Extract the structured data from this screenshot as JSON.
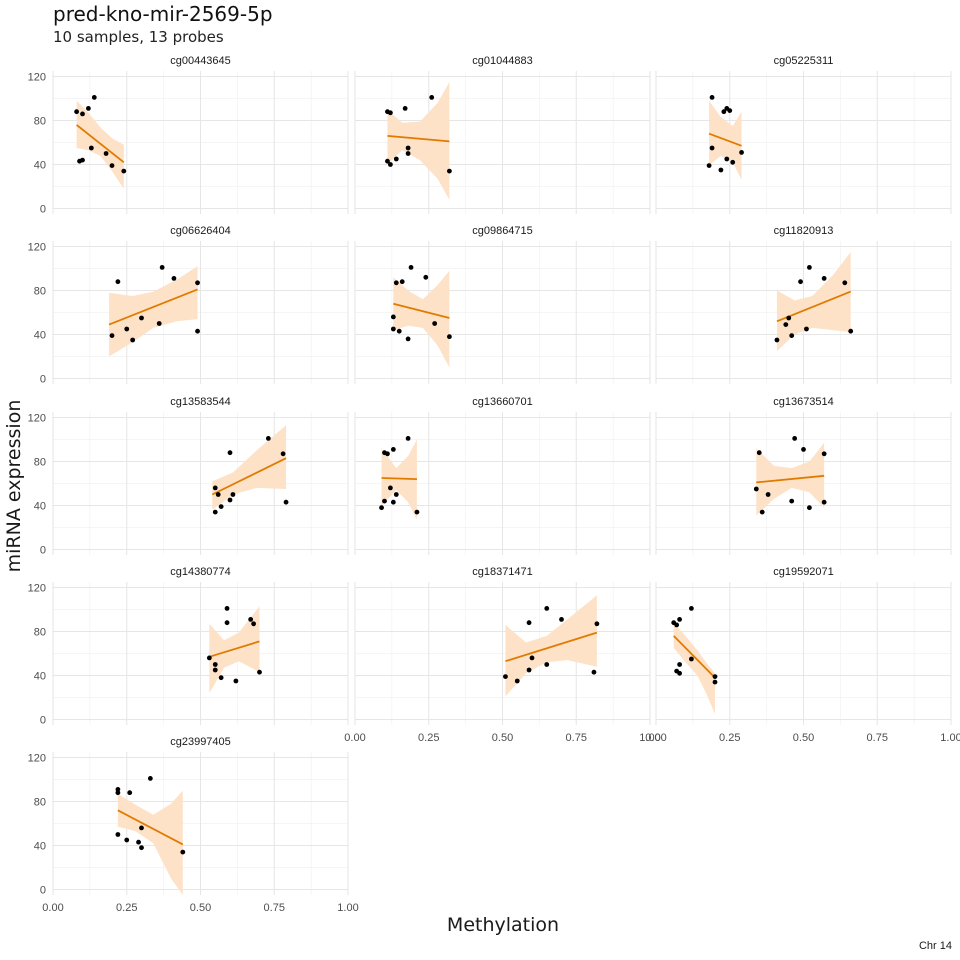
{
  "page": {
    "title": "pred-kno-mir-2569-5p",
    "subtitle": "10 samples, 13 probes",
    "caption": "Chr 14"
  },
  "colors": {
    "line": "#e07b00",
    "ribbon": "#fde0c5",
    "point": "#000000",
    "grid_major": "#e6e6e6",
    "grid_minor": "#f2f2f2"
  },
  "chart_data": {
    "type": "scatter",
    "xlabel": "Methylation",
    "ylabel": "miRNA expression",
    "xlim": [
      0,
      1
    ],
    "ylim": [
      -5,
      125
    ],
    "x_ticks": [
      0,
      0.25,
      0.5,
      0.75,
      1
    ],
    "x_tick_labels": [
      "0.00",
      "0.25",
      "0.50",
      "0.75",
      "1.00"
    ],
    "y_ticks": [
      0,
      40,
      80,
      120
    ],
    "y_tick_labels": [
      "0",
      "40",
      "80",
      "120"
    ],
    "grid": true,
    "panels": [
      {
        "name": "cg00443645",
        "points": [
          [
            0.08,
            88
          ],
          [
            0.1,
            86
          ],
          [
            0.12,
            91
          ],
          [
            0.14,
            101
          ],
          [
            0.09,
            43
          ],
          [
            0.1,
            44
          ],
          [
            0.13,
            55
          ],
          [
            0.18,
            50
          ],
          [
            0.2,
            39
          ],
          [
            0.24,
            34
          ]
        ],
        "fit": {
          "x": [
            0.08,
            0.24
          ],
          "y": [
            76,
            42
          ]
        },
        "band": [
          [
            0.08,
            98,
            55
          ],
          [
            0.12,
            87,
            53
          ],
          [
            0.16,
            74,
            48
          ],
          [
            0.2,
            64,
            34
          ],
          [
            0.24,
            58,
            18
          ]
        ]
      },
      {
        "name": "cg01044883",
        "points": [
          [
            0.11,
            88
          ],
          [
            0.12,
            87
          ],
          [
            0.17,
            91
          ],
          [
            0.26,
            101
          ],
          [
            0.11,
            43
          ],
          [
            0.12,
            40
          ],
          [
            0.14,
            45
          ],
          [
            0.18,
            50
          ],
          [
            0.18,
            55
          ],
          [
            0.32,
            34
          ]
        ],
        "fit": {
          "x": [
            0.11,
            0.32
          ],
          "y": [
            66,
            61
          ]
        },
        "band": [
          [
            0.11,
            90,
            40
          ],
          [
            0.16,
            78,
            53
          ],
          [
            0.22,
            79,
            44
          ],
          [
            0.28,
            96,
            27
          ],
          [
            0.32,
            115,
            8
          ]
        ]
      },
      {
        "name": "cg05225311",
        "points": [
          [
            0.19,
            101
          ],
          [
            0.23,
            88
          ],
          [
            0.24,
            91
          ],
          [
            0.25,
            89
          ],
          [
            0.19,
            55
          ],
          [
            0.18,
            39
          ],
          [
            0.22,
            35
          ],
          [
            0.24,
            45
          ],
          [
            0.26,
            42
          ],
          [
            0.29,
            51
          ]
        ],
        "fit": {
          "x": [
            0.18,
            0.29
          ],
          "y": [
            68,
            57
          ]
        },
        "band": [
          [
            0.18,
            98,
            39
          ],
          [
            0.22,
            83,
            48
          ],
          [
            0.26,
            75,
            42
          ],
          [
            0.29,
            88,
            26
          ]
        ]
      },
      {
        "name": "cg06626404",
        "points": [
          [
            0.22,
            88
          ],
          [
            0.37,
            101
          ],
          [
            0.41,
            91
          ],
          [
            0.49,
            87
          ],
          [
            0.25,
            45
          ],
          [
            0.2,
            39
          ],
          [
            0.27,
            35
          ],
          [
            0.3,
            55
          ],
          [
            0.36,
            50
          ],
          [
            0.49,
            43
          ]
        ],
        "fit": {
          "x": [
            0.19,
            0.49
          ],
          "y": [
            49,
            81
          ]
        },
        "band": [
          [
            0.19,
            78,
            20
          ],
          [
            0.27,
            75,
            33
          ],
          [
            0.34,
            79,
            46
          ],
          [
            0.42,
            90,
            52
          ],
          [
            0.49,
            102,
            54
          ]
        ]
      },
      {
        "name": "cg09864715",
        "points": [
          [
            0.14,
            87
          ],
          [
            0.16,
            88
          ],
          [
            0.19,
            101
          ],
          [
            0.24,
            92
          ],
          [
            0.13,
            56
          ],
          [
            0.13,
            45
          ],
          [
            0.15,
            43
          ],
          [
            0.18,
            36
          ],
          [
            0.27,
            50
          ],
          [
            0.32,
            38
          ]
        ],
        "fit": {
          "x": [
            0.13,
            0.32
          ],
          "y": [
            68,
            55
          ]
        },
        "band": [
          [
            0.13,
            92,
            44
          ],
          [
            0.18,
            80,
            48
          ],
          [
            0.23,
            72,
            46
          ],
          [
            0.28,
            85,
            30
          ],
          [
            0.32,
            98,
            10
          ]
        ]
      },
      {
        "name": "cg11820913",
        "points": [
          [
            0.49,
            88
          ],
          [
            0.52,
            101
          ],
          [
            0.57,
            91
          ],
          [
            0.64,
            87
          ],
          [
            0.45,
            55
          ],
          [
            0.44,
            49
          ],
          [
            0.46,
            39
          ],
          [
            0.41,
            35
          ],
          [
            0.51,
            45
          ],
          [
            0.66,
            43
          ]
        ],
        "fit": {
          "x": [
            0.41,
            0.66
          ],
          "y": [
            52,
            79
          ]
        },
        "band": [
          [
            0.41,
            80,
            25
          ],
          [
            0.47,
            71,
            40
          ],
          [
            0.53,
            75,
            46
          ],
          [
            0.6,
            94,
            44
          ],
          [
            0.66,
            115,
            42
          ]
        ]
      },
      {
        "name": "cg13583544",
        "points": [
          [
            0.6,
            88
          ],
          [
            0.73,
            101
          ],
          [
            0.78,
            87
          ],
          [
            0.55,
            56
          ],
          [
            0.56,
            50
          ],
          [
            0.57,
            39
          ],
          [
            0.55,
            34
          ],
          [
            0.6,
            45
          ],
          [
            0.61,
            50
          ],
          [
            0.79,
            43
          ]
        ],
        "fit": {
          "x": [
            0.54,
            0.79
          ],
          "y": [
            50,
            83
          ]
        },
        "band": [
          [
            0.54,
            62,
            36
          ],
          [
            0.61,
            70,
            50
          ],
          [
            0.69,
            90,
            56
          ],
          [
            0.79,
            113,
            55
          ]
        ]
      },
      {
        "name": "cg13660701",
        "points": [
          [
            0.1,
            88
          ],
          [
            0.11,
            87
          ],
          [
            0.13,
            91
          ],
          [
            0.18,
            101
          ],
          [
            0.12,
            56
          ],
          [
            0.14,
            50
          ],
          [
            0.09,
            38
          ],
          [
            0.1,
            44
          ],
          [
            0.13,
            43
          ],
          [
            0.21,
            34
          ]
        ],
        "fit": {
          "x": [
            0.09,
            0.21
          ],
          "y": [
            65,
            64
          ]
        },
        "band": [
          [
            0.09,
            92,
            40
          ],
          [
            0.14,
            74,
            54
          ],
          [
            0.18,
            85,
            43
          ],
          [
            0.21,
            100,
            27
          ]
        ]
      },
      {
        "name": "cg13673514",
        "points": [
          [
            0.35,
            88
          ],
          [
            0.47,
            101
          ],
          [
            0.5,
            91
          ],
          [
            0.57,
            87
          ],
          [
            0.34,
            55
          ],
          [
            0.38,
            50
          ],
          [
            0.36,
            34
          ],
          [
            0.46,
            44
          ],
          [
            0.52,
            38
          ],
          [
            0.57,
            43
          ]
        ],
        "fit": {
          "x": [
            0.34,
            0.57
          ],
          "y": [
            61,
            67
          ]
        },
        "band": [
          [
            0.34,
            92,
            31
          ],
          [
            0.4,
            76,
            46
          ],
          [
            0.46,
            74,
            56
          ],
          [
            0.52,
            80,
            52
          ],
          [
            0.57,
            97,
            38
          ]
        ]
      },
      {
        "name": "cg14380774",
        "points": [
          [
            0.59,
            88
          ],
          [
            0.59,
            101
          ],
          [
            0.67,
            91
          ],
          [
            0.68,
            87
          ],
          [
            0.53,
            56
          ],
          [
            0.55,
            50
          ],
          [
            0.55,
            45
          ],
          [
            0.57,
            38
          ],
          [
            0.62,
            35
          ],
          [
            0.7,
            43
          ]
        ],
        "fit": {
          "x": [
            0.53,
            0.7
          ],
          "y": [
            57,
            71
          ]
        },
        "band": [
          [
            0.53,
            87,
            24
          ],
          [
            0.58,
            72,
            47
          ],
          [
            0.63,
            79,
            53
          ],
          [
            0.7,
            103,
            43
          ]
        ]
      },
      {
        "name": "cg18371471",
        "points": [
          [
            0.59,
            88
          ],
          [
            0.65,
            101
          ],
          [
            0.7,
            91
          ],
          [
            0.82,
            87
          ],
          [
            0.6,
            56
          ],
          [
            0.65,
            50
          ],
          [
            0.59,
            45
          ],
          [
            0.55,
            35
          ],
          [
            0.51,
            39
          ],
          [
            0.81,
            43
          ]
        ],
        "fit": {
          "x": [
            0.51,
            0.82
          ],
          "y": [
            53,
            79
          ]
        },
        "band": [
          [
            0.51,
            86,
            21
          ],
          [
            0.58,
            70,
            42
          ],
          [
            0.65,
            76,
            52
          ],
          [
            0.72,
            91,
            54
          ],
          [
            0.82,
            113,
            48
          ]
        ]
      },
      {
        "name": "cg19592071",
        "points": [
          [
            0.06,
            88
          ],
          [
            0.07,
            86
          ],
          [
            0.08,
            91
          ],
          [
            0.12,
            101
          ],
          [
            0.07,
            44
          ],
          [
            0.08,
            42
          ],
          [
            0.08,
            50
          ],
          [
            0.12,
            55
          ],
          [
            0.2,
            39
          ],
          [
            0.2,
            34
          ]
        ],
        "fit": {
          "x": [
            0.06,
            0.2
          ],
          "y": [
            76,
            38
          ]
        },
        "band": [
          [
            0.06,
            88,
            65
          ],
          [
            0.1,
            76,
            52
          ],
          [
            0.14,
            63,
            40
          ],
          [
            0.17,
            52,
            24
          ],
          [
            0.2,
            42,
            5
          ]
        ]
      },
      {
        "name": "cg23997405",
        "points": [
          [
            0.22,
            88
          ],
          [
            0.22,
            91
          ],
          [
            0.26,
            88
          ],
          [
            0.33,
            101
          ],
          [
            0.22,
            50
          ],
          [
            0.25,
            45
          ],
          [
            0.29,
            43
          ],
          [
            0.3,
            56
          ],
          [
            0.3,
            38
          ],
          [
            0.44,
            34
          ]
        ],
        "fit": {
          "x": [
            0.22,
            0.44
          ],
          "y": [
            72,
            41
          ]
        },
        "band": [
          [
            0.22,
            87,
            57
          ],
          [
            0.28,
            77,
            53
          ],
          [
            0.34,
            68,
            42
          ],
          [
            0.4,
            78,
            10
          ],
          [
            0.44,
            90,
            -5
          ]
        ]
      }
    ]
  }
}
